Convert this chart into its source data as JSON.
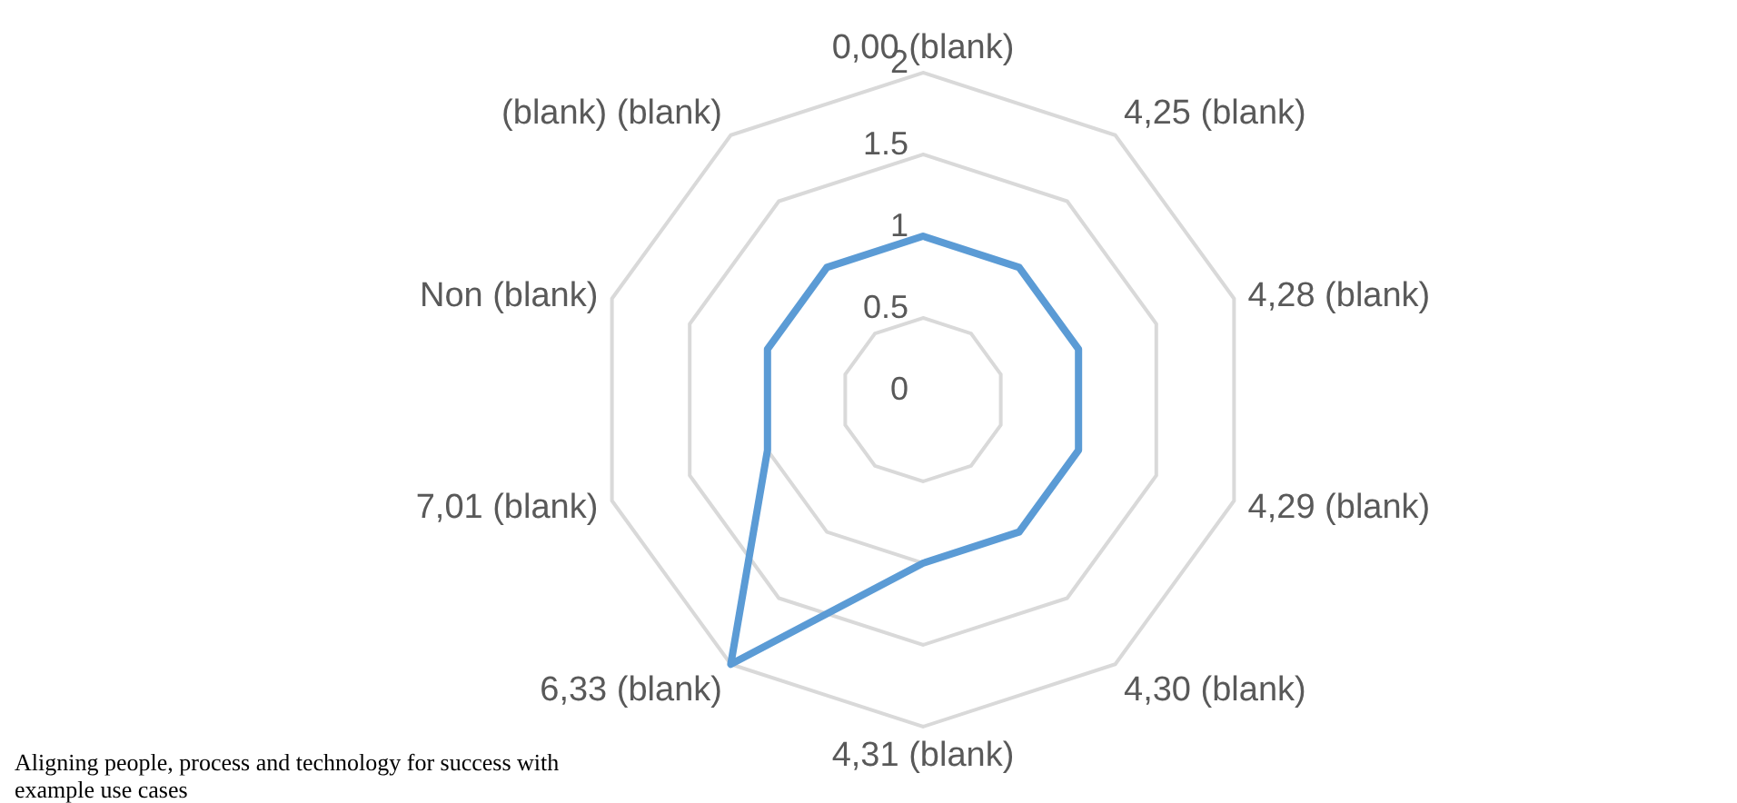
{
  "chart_data": {
    "type": "radar",
    "categories": [
      "0,00 (blank)",
      "4,25 (blank)",
      "4,28 (blank)",
      "4,29 (blank)",
      "4,30 (blank)",
      "4,31 (blank)",
      "6,33 (blank)",
      "7,01 (blank)",
      "Non (blank)",
      "(blank) (blank)"
    ],
    "series": [
      {
        "color": "#5b9bd5",
        "values": [
          1,
          1,
          1,
          1,
          1,
          1,
          2,
          1,
          1,
          1
        ]
      }
    ],
    "ylim": [
      0,
      2
    ],
    "yticks": [
      0,
      0.5,
      1,
      1.5,
      2
    ],
    "grid": true,
    "annotations": [
      "Aligning people, process and technology for success with example use cases"
    ]
  }
}
